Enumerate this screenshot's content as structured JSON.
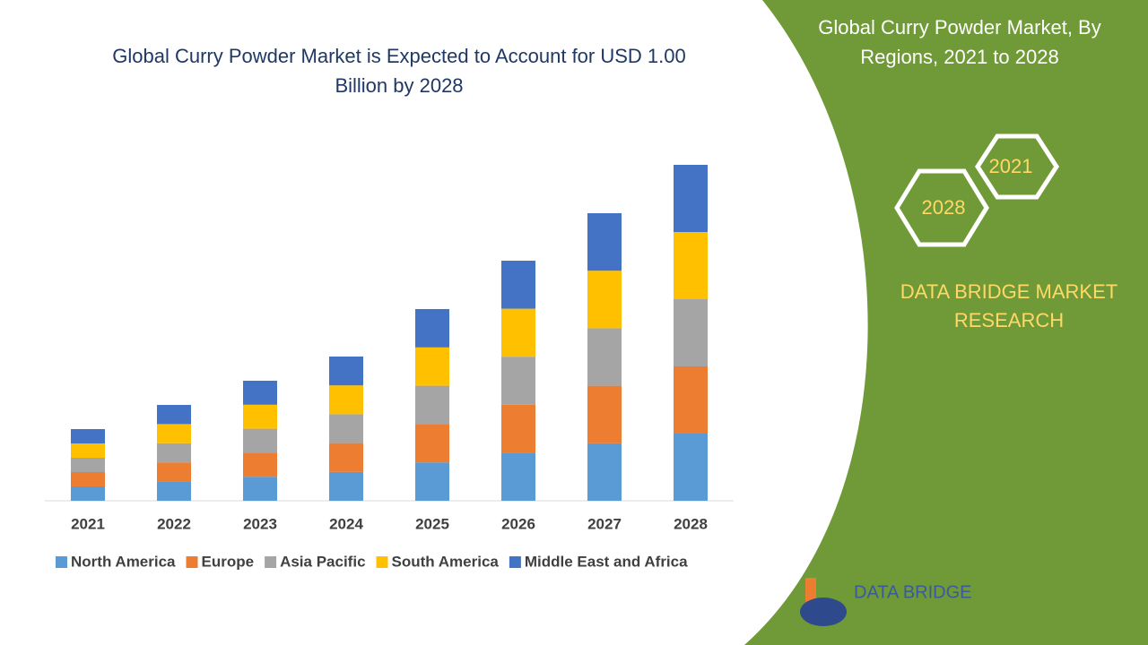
{
  "chart_data": {
    "type": "stacked-bar",
    "title": "Global Curry Powder Market is Expected to Account for USD 1.00 Billion by 2028",
    "categories": [
      "2021",
      "2022",
      "2023",
      "2024",
      "2025",
      "2026",
      "2027",
      "2028"
    ],
    "series": [
      {
        "name": "North America",
        "color": "#5b9bd5",
        "values": [
          16,
          21.4,
          26.8,
          32.2,
          42.8,
          53.6,
          64.2,
          75
        ]
      },
      {
        "name": "Europe",
        "color": "#ed7d31",
        "values": [
          16,
          21.4,
          26.8,
          32.2,
          42.8,
          53.6,
          64.2,
          75
        ]
      },
      {
        "name": "Asia Pacific",
        "color": "#a5a5a5",
        "values": [
          16,
          21.4,
          26.8,
          32.2,
          42.8,
          53.6,
          64.2,
          75
        ]
      },
      {
        "name": "South America",
        "color": "#ffc000",
        "values": [
          16,
          21.4,
          26.8,
          32.2,
          42.8,
          53.6,
          64.2,
          75
        ]
      },
      {
        "name": "Middle East and Africa",
        "color": "#4472c4",
        "values": [
          16,
          21.4,
          26.8,
          32.2,
          42.8,
          53.6,
          64.2,
          75
        ]
      }
    ],
    "ylim": [
      0,
      400
    ]
  },
  "panel": {
    "title": "Global Curry Powder Market, By Regions, 2021 to 2028",
    "hexagons": [
      "2021",
      "2028"
    ],
    "brand": "DATA BRIDGE MARKET RESEARCH",
    "logo": "DATA BRIDGE"
  }
}
